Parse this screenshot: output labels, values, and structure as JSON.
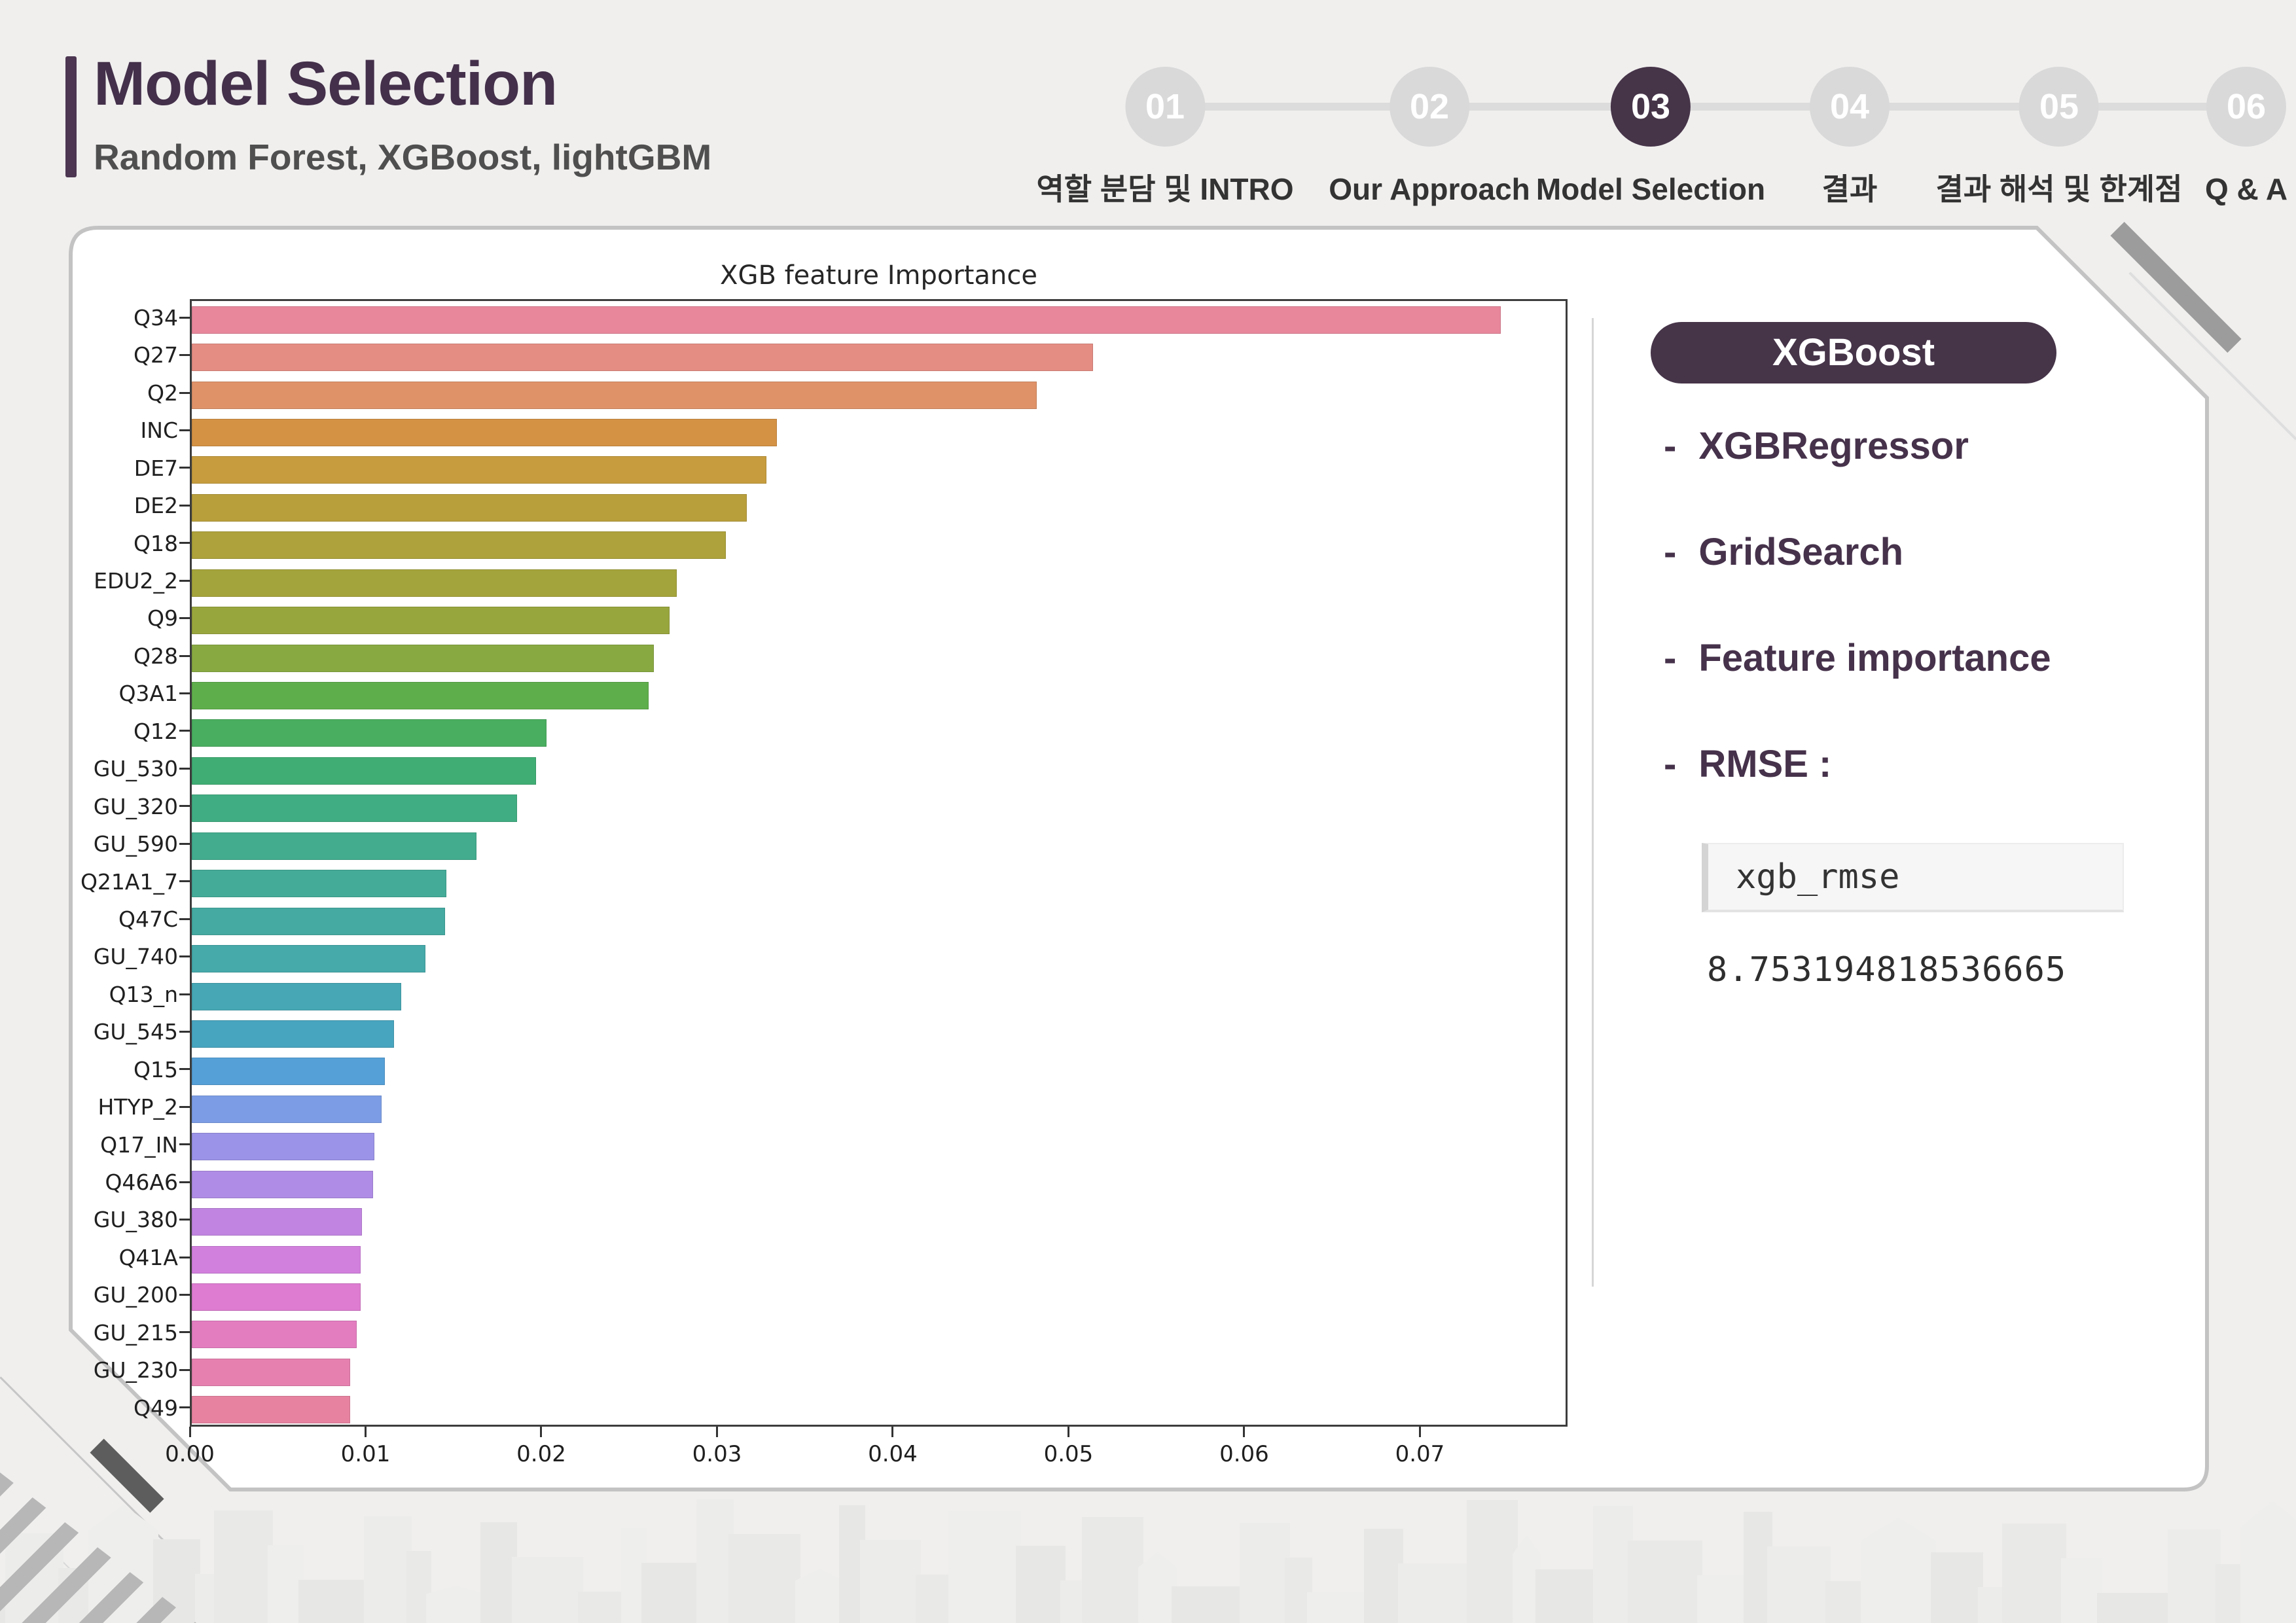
{
  "header": {
    "title": "Model Selection",
    "subtitle": "Random Forest, XGBoost, lightGBM"
  },
  "stepper": {
    "items": [
      {
        "number": "01",
        "label": "역할 분담 및 INTRO",
        "active": false
      },
      {
        "number": "02",
        "label": "Our Approach",
        "active": false
      },
      {
        "number": "03",
        "label": "Model Selection",
        "active": true
      },
      {
        "number": "04",
        "label": "결과",
        "active": false
      },
      {
        "number": "05",
        "label": "결과 해석 및 한계점",
        "active": false
      },
      {
        "number": "06",
        "label": "Q & A",
        "active": false
      }
    ],
    "active_color": "#463449",
    "inactive_color": "#d9d9d9"
  },
  "chart_data": {
    "type": "bar",
    "orientation": "horizontal",
    "title": "XGB feature Importance",
    "xlabel": "",
    "ylabel": "",
    "grid": false,
    "xlim": [
      0,
      0.0784
    ],
    "xticks": [
      "0.00",
      "0.01",
      "0.02",
      "0.03",
      "0.04",
      "0.05",
      "0.06",
      "0.07"
    ],
    "categories": [
      "Q34",
      "Q27",
      "Q2",
      "INC",
      "DE7",
      "DE2",
      "Q18",
      "EDU2_2",
      "Q9",
      "Q28",
      "Q3A1",
      "Q12",
      "GU_530",
      "GU_320",
      "GU_590",
      "Q21A1_7",
      "Q47C",
      "GU_740",
      "Q13_n",
      "GU_545",
      "Q15",
      "HTYP_2",
      "Q17_IN",
      "Q46A6",
      "GU_380",
      "Q41A",
      "GU_200",
      "GU_215",
      "GU_230",
      "Q49"
    ],
    "values": [
      0.0745,
      0.0513,
      0.0481,
      0.0333,
      0.0327,
      0.0316,
      0.0304,
      0.0276,
      0.0272,
      0.0263,
      0.026,
      0.0202,
      0.0196,
      0.0185,
      0.0162,
      0.0145,
      0.0144,
      0.0133,
      0.0119,
      0.0115,
      0.011,
      0.0108,
      0.0104,
      0.0103,
      0.0097,
      0.0096,
      0.0096,
      0.0094,
      0.009,
      0.009
    ],
    "bar_colors": [
      "#e8879c",
      "#e48d83",
      "#df9268",
      "#d49245",
      "#c69c3e",
      "#b99f3c",
      "#ada23b",
      "#a4a43c",
      "#98a63e",
      "#88a942",
      "#5fae4c",
      "#49ae5f",
      "#40ae74",
      "#41ad82",
      "#43ac8e",
      "#44ab98",
      "#45aaa1",
      "#46a9aa",
      "#47a7b4",
      "#48a5bf",
      "#55a0d7",
      "#7c9ce5",
      "#9a93e7",
      "#af8ce5",
      "#c185e1",
      "#d280de",
      "#dd7cd0",
      "#e37dc0",
      "#e680af",
      "#e783a1"
    ]
  },
  "panel": {
    "badge": "XGBoost",
    "bullet_prefix": "-",
    "bullets": [
      "XGBRegressor",
      "GridSearch",
      "Feature importance",
      "RMSE :"
    ],
    "code_cell": "xgb_rmse",
    "code_output": "8.753194818536665",
    "accent_color": "#463449"
  }
}
